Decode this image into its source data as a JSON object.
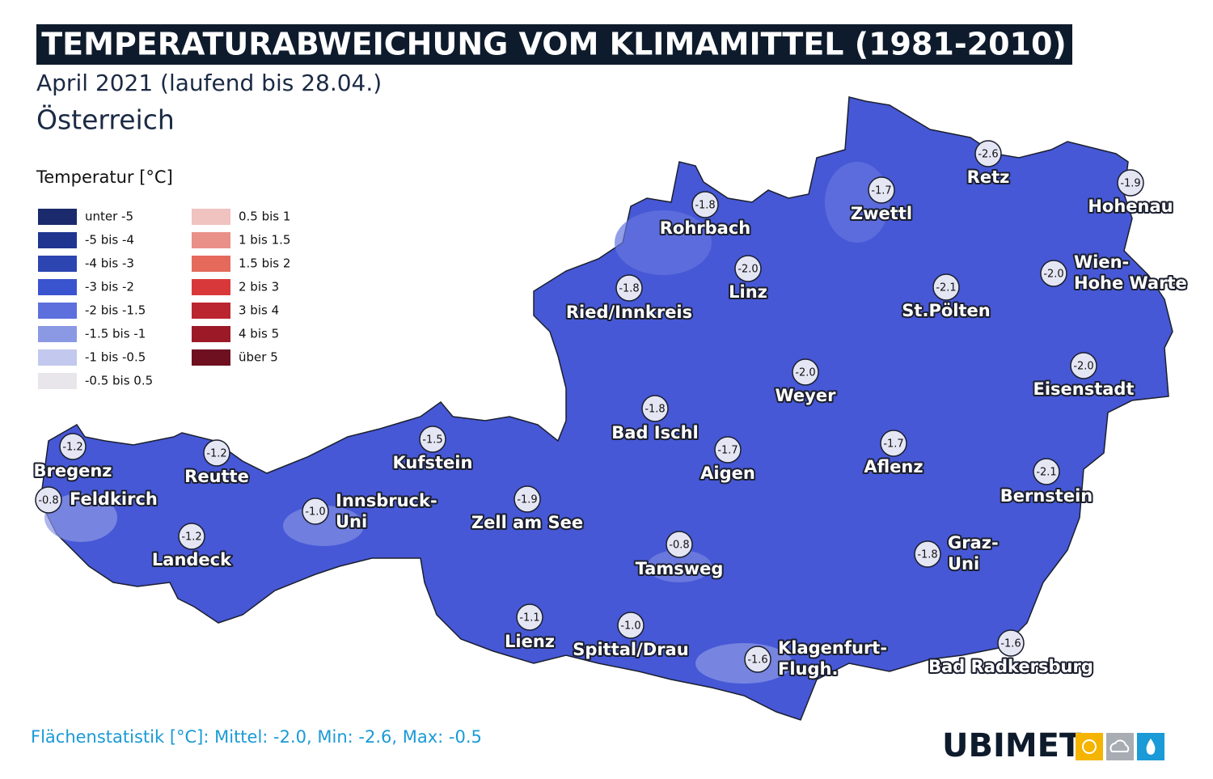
{
  "header": {
    "title": "TEMPERATURABWEICHUNG VOM KLIMAMITTEL (1981-2010)",
    "subtitle": "April 2021 (laufend bis 28.04.)",
    "region": "Österreich"
  },
  "legend": {
    "title": "Temperatur [°C]",
    "items": [
      {
        "label": "unter -5",
        "color": "#1a2a6c"
      },
      {
        "label": "-5 bis -4",
        "color": "#1f3590"
      },
      {
        "label": "-4 bis -3",
        "color": "#2c45b0"
      },
      {
        "label": "-3 bis -2",
        "color": "#3a53cf"
      },
      {
        "label": "-2 bis -1.5",
        "color": "#5d6fdc"
      },
      {
        "label": "-1.5 bis -1",
        "color": "#8b98e4"
      },
      {
        "label": "-1 bis -0.5",
        "color": "#c3c8ee"
      },
      {
        "label": "-0.5 bis 0.5",
        "color": "#e8e6ea"
      },
      {
        "label": "0.5 bis 1",
        "color": "#f0c2c0"
      },
      {
        "label": "1 bis 1.5",
        "color": "#e99088"
      },
      {
        "label": "1.5 bis 2",
        "color": "#e56a5c"
      },
      {
        "label": "2 bis 3",
        "color": "#d9383a"
      },
      {
        "label": "3 bis 4",
        "color": "#bb2530"
      },
      {
        "label": "4 bis 5",
        "color": "#9c1a28"
      },
      {
        "label": "über 5",
        "color": "#6e1020"
      }
    ]
  },
  "stations": [
    {
      "name": [
        "Bregenz"
      ],
      "value": "-1.2"
    },
    {
      "name": [
        "Feldkirch"
      ],
      "value": "-0.8"
    },
    {
      "name": [
        "Reutte"
      ],
      "value": "-1.2"
    },
    {
      "name": [
        "Landeck"
      ],
      "value": "-1.2"
    },
    {
      "name": [
        "Innsbruck-",
        "Uni"
      ],
      "value": "-1.0"
    },
    {
      "name": [
        "Kufstein"
      ],
      "value": "-1.5"
    },
    {
      "name": [
        "Zell am See"
      ],
      "value": "-1.9"
    },
    {
      "name": [
        "Rohrbach"
      ],
      "value": "-1.8"
    },
    {
      "name": [
        "Ried/Innkreis"
      ],
      "value": "-1.8"
    },
    {
      "name": [
        "Linz"
      ],
      "value": "-2.0"
    },
    {
      "name": [
        "Bad Ischl"
      ],
      "value": "-1.8"
    },
    {
      "name": [
        "Aigen"
      ],
      "value": "-1.7"
    },
    {
      "name": [
        "Weyer"
      ],
      "value": "-2.0"
    },
    {
      "name": [
        "Tamsweg"
      ],
      "value": "-0.8"
    },
    {
      "name": [
        "Lienz"
      ],
      "value": "-1.1"
    },
    {
      "name": [
        "Spittal/Drau"
      ],
      "value": "-1.0"
    },
    {
      "name": [
        "Klagenfurt-",
        "Flugh."
      ],
      "value": "-1.6"
    },
    {
      "name": [
        "Zwettl"
      ],
      "value": "-1.7"
    },
    {
      "name": [
        "Retz"
      ],
      "value": "-2.6"
    },
    {
      "name": [
        "Hohenau"
      ],
      "value": "-1.9"
    },
    {
      "name": [
        "Wien-",
        "Hohe Warte"
      ],
      "value": "-2.0"
    },
    {
      "name": [
        "St.Pölten"
      ],
      "value": "-2.1"
    },
    {
      "name": [
        "Aflenz"
      ],
      "value": "-1.7"
    },
    {
      "name": [
        "Eisenstadt"
      ],
      "value": "-2.0"
    },
    {
      "name": [
        "Bernstein"
      ],
      "value": "-2.1"
    },
    {
      "name": [
        "Graz-",
        "Uni"
      ],
      "value": "-1.8"
    },
    {
      "name": [
        "Bad Radkersburg"
      ],
      "value": "-1.6"
    }
  ],
  "footer": "Flächenstatistik [°C]: Mittel: -2.0, Min: -2.6, Max: -0.5",
  "logo": "UBIMET"
}
